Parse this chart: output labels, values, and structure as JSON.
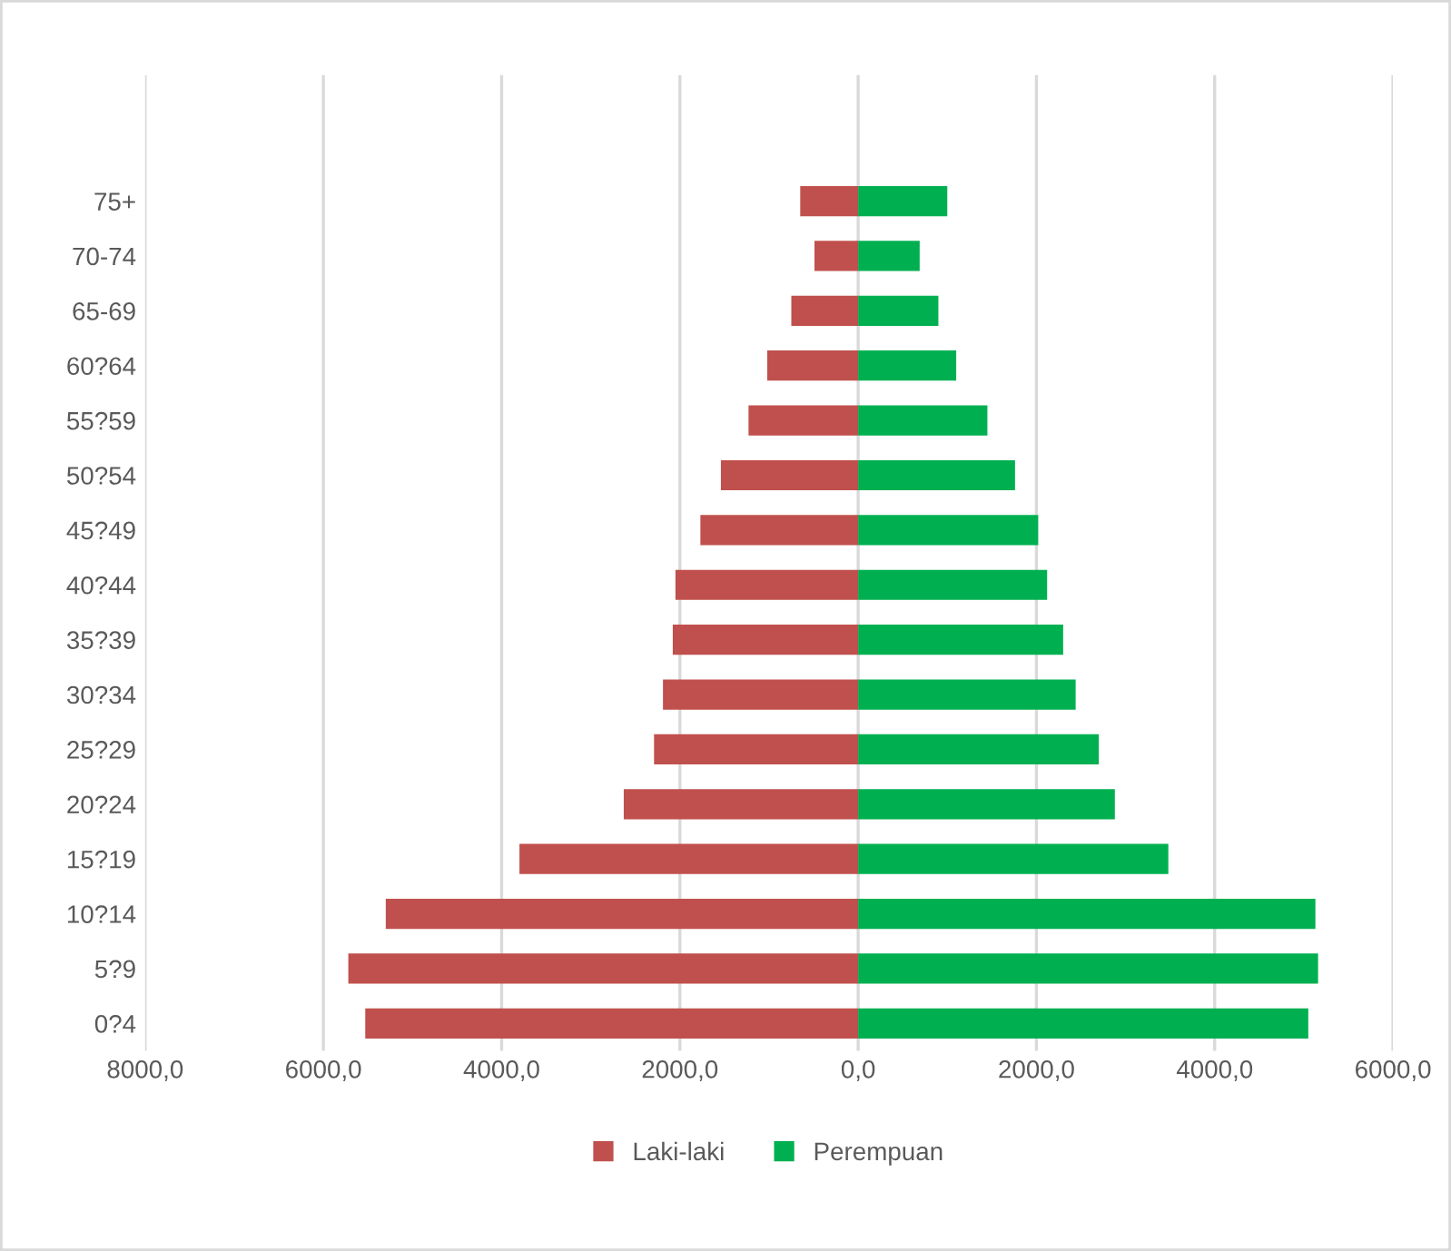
{
  "chart_data": {
    "type": "bar",
    "orientation": "horizontal",
    "categories": [
      "75+",
      "70-74",
      "65-69",
      "60?64",
      "55?59",
      "50?54",
      "45?49",
      "40?44",
      "35?39",
      "30?34",
      "25?29",
      "20?24",
      "15?19",
      "10?14",
      "5?9",
      "0?4"
    ],
    "series": [
      {
        "name": "Laki-laki",
        "color": "#c0504d",
        "values": [
          -650,
          -490,
          -750,
          -1020,
          -1230,
          -1540,
          -1770,
          -2050,
          -2080,
          -2190,
          -2290,
          -2630,
          -3800,
          -5300,
          -5720,
          -5530
        ]
      },
      {
        "name": "Perempuan",
        "color": "#00b050",
        "values": [
          1000,
          690,
          900,
          1100,
          1450,
          1760,
          2020,
          2120,
          2300,
          2440,
          2700,
          2880,
          3480,
          5130,
          5160,
          5050
        ]
      }
    ],
    "xlim": [
      -8000,
      6000
    ],
    "xticks": [
      {
        "value": -8000,
        "label": "8000,0"
      },
      {
        "value": -6000,
        "label": "6000,0"
      },
      {
        "value": -4000,
        "label": "4000,0"
      },
      {
        "value": -2000,
        "label": "2000,0"
      },
      {
        "value": 0,
        "label": "0,0"
      },
      {
        "value": 2000,
        "label": "2000,0"
      },
      {
        "value": 4000,
        "label": "4000,0"
      },
      {
        "value": 6000,
        "label": "6000,0"
      }
    ],
    "grid": "x",
    "legend": "bottom",
    "stacked": true
  }
}
